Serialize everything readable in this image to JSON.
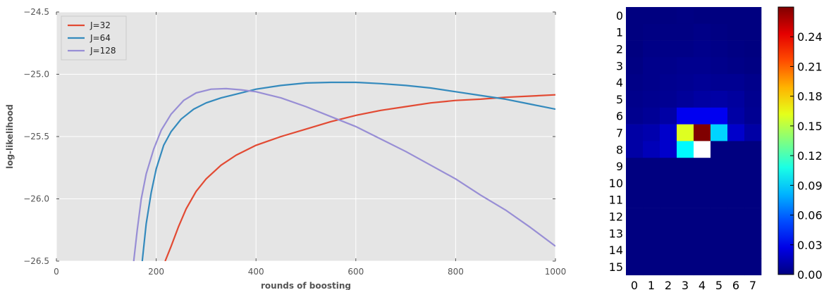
{
  "chart_data": [
    {
      "type": "line",
      "title": "",
      "xlabel": "rounds of boosting",
      "ylabel": "log-likelihood",
      "xlim": [
        0,
        1000
      ],
      "ylim": [
        -26.5,
        -24.5
      ],
      "xticks": [
        0,
        200,
        400,
        600,
        800,
        1000
      ],
      "xtick_labels": [
        "0",
        "200",
        "400",
        "600",
        "800",
        "1000"
      ],
      "yticks": [
        -24.5,
        -25.0,
        -25.5,
        -26.0,
        -26.5
      ],
      "ytick_labels": [
        "−24.5",
        "−25.0",
        "−25.5",
        "−26.0",
        "−26.5"
      ],
      "grid": true,
      "background": "#e5e5e5",
      "legend_position": "top-left",
      "series": [
        {
          "name": "J=32",
          "color": "#e24a33",
          "x": [
            218,
            230,
            245,
            260,
            280,
            300,
            330,
            360,
            400,
            450,
            500,
            550,
            600,
            650,
            700,
            750,
            800,
            850,
            900,
            950,
            1000
          ],
          "y": [
            -26.5,
            -26.38,
            -26.22,
            -26.08,
            -25.94,
            -25.84,
            -25.73,
            -25.65,
            -25.57,
            -25.5,
            -25.44,
            -25.38,
            -25.33,
            -25.29,
            -25.26,
            -25.23,
            -25.21,
            -25.2,
            -25.185,
            -25.175,
            -25.165
          ]
        },
        {
          "name": "J=64",
          "color": "#348abd",
          "x": [
            172,
            180,
            190,
            200,
            215,
            230,
            250,
            275,
            300,
            330,
            360,
            400,
            450,
            500,
            550,
            600,
            650,
            700,
            750,
            800,
            850,
            900,
            950,
            1000
          ],
          "y": [
            -26.5,
            -26.2,
            -25.95,
            -25.76,
            -25.57,
            -25.46,
            -25.36,
            -25.28,
            -25.23,
            -25.19,
            -25.16,
            -25.12,
            -25.09,
            -25.07,
            -25.065,
            -25.065,
            -25.075,
            -25.09,
            -25.11,
            -25.14,
            -25.17,
            -25.2,
            -25.24,
            -25.28
          ]
        },
        {
          "name": "J=128",
          "color": "#988ed5",
          "x": [
            155,
            162,
            170,
            180,
            195,
            210,
            230,
            255,
            280,
            310,
            340,
            370,
            400,
            450,
            500,
            550,
            600,
            650,
            700,
            750,
            800,
            850,
            900,
            950,
            1000
          ],
          "y": [
            -26.5,
            -26.25,
            -26.0,
            -25.8,
            -25.6,
            -25.45,
            -25.32,
            -25.21,
            -25.15,
            -25.12,
            -25.115,
            -25.125,
            -25.14,
            -25.19,
            -25.26,
            -25.34,
            -25.42,
            -25.52,
            -25.62,
            -25.73,
            -25.84,
            -25.97,
            -26.09,
            -26.23,
            -26.38
          ]
        }
      ]
    },
    {
      "type": "heatmap",
      "title": "",
      "colormap": "jet",
      "rows": [
        "0",
        "1",
        "2",
        "3",
        "4",
        "5",
        "6",
        "7",
        "8",
        "9",
        "10",
        "11",
        "12",
        "13",
        "14",
        "15"
      ],
      "cols": [
        "0",
        "1",
        "2",
        "3",
        "4",
        "5",
        "6",
        "7"
      ],
      "vmin": 0.0,
      "vmax": 0.27,
      "colorbar_ticks": [
        "0.00",
        "0.03",
        "0.06",
        "0.09",
        "0.12",
        "0.15",
        "0.18",
        "0.21",
        "0.24"
      ],
      "values": [
        [
          0.0,
          0.0,
          0.0,
          0.001,
          0.0,
          0.0,
          0.0,
          0.0
        ],
        [
          0.0,
          0.001,
          0.001,
          0.001,
          0.002,
          0.001,
          0.0,
          0.0
        ],
        [
          0.0,
          0.002,
          0.002,
          0.002,
          0.003,
          0.002,
          0.001,
          0.0
        ],
        [
          0.001,
          0.003,
          0.003,
          0.004,
          0.004,
          0.003,
          0.002,
          0.001
        ],
        [
          0.002,
          0.003,
          0.004,
          0.005,
          0.006,
          0.005,
          0.005,
          0.003
        ],
        [
          0.003,
          0.004,
          0.005,
          0.007,
          0.009,
          0.01,
          0.008,
          0.004
        ],
        [
          0.004,
          0.006,
          0.01,
          0.03,
          0.03,
          0.03,
          0.01,
          0.005
        ],
        [
          0.01,
          0.012,
          0.02,
          0.16,
          0.27,
          0.09,
          0.02,
          0.01
        ],
        [
          0.01,
          0.015,
          0.02,
          0.1,
          null,
          0.0,
          0.0,
          0.0
        ],
        [
          0.0,
          0.0,
          0.0,
          0.0,
          0.0,
          0.0,
          0.0,
          0.0
        ],
        [
          0.0,
          0.0,
          0.0,
          0.0,
          0.0,
          0.0,
          0.0,
          0.0
        ],
        [
          0.0,
          0.0,
          0.0,
          0.0,
          0.0,
          0.0,
          0.0,
          0.0
        ],
        [
          0.0,
          0.0,
          0.0,
          0.0,
          0.0,
          0.0,
          0.0,
          0.0
        ],
        [
          0.0,
          0.0,
          0.0,
          0.0,
          0.0,
          0.0,
          0.0,
          0.0
        ],
        [
          0.0,
          0.0,
          0.0,
          0.0,
          0.0,
          0.0,
          0.0,
          0.0
        ],
        [
          0.0,
          0.0,
          0.0,
          0.0,
          0.0,
          0.0,
          0.0,
          0.0
        ]
      ]
    }
  ]
}
